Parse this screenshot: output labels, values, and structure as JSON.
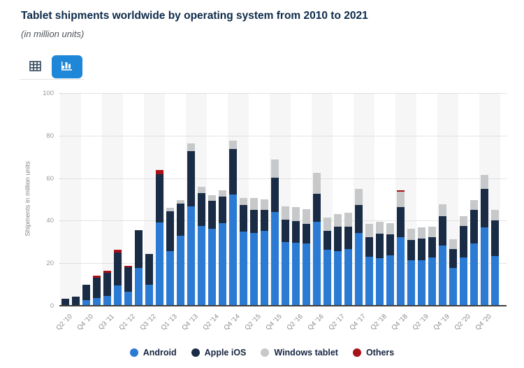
{
  "header": {
    "title": "Tablet shipments worldwide by operating system from 2010 to 2021",
    "subtitle": "(in million units)"
  },
  "toolbar": {
    "table_view_icon": "table-grid-icon",
    "chart_view_icon": "bar-chart-icon",
    "active_view": "chart",
    "active_color": "#1f87d8",
    "inactive_icon_color": "#33475c"
  },
  "chart_data": {
    "type": "bar",
    "stacked": true,
    "title": "Tablet shipments worldwide by operating system from 2010 to 2021",
    "subtitle": "(in million units)",
    "ylabel": "Shipments in million units",
    "xlabel": "",
    "ylim": [
      0,
      100
    ],
    "yticks": [
      0,
      20,
      40,
      60,
      80,
      100
    ],
    "grid": "horizontal-dotted",
    "plot_bands": "alternating vertical bands per 2 quarters",
    "legend_position": "bottom",
    "xtick_label_every": 2,
    "categories": [
      "Q2 '10",
      "Q3 '10",
      "Q4 '10",
      "Q2 '11",
      "Q3 '11",
      "Q4 '11",
      "Q1 '12",
      "Q2 '12",
      "Q3 '12",
      "Q4 '12",
      "Q1 '13",
      "Q2 '13",
      "Q4 '13",
      "Q1 '14",
      "Q2 '14",
      "Q3 '14",
      "Q4 '14",
      "Q1 '15",
      "Q2 '15",
      "Q3 '15",
      "Q4 '15",
      "Q1 '16",
      "Q2 '16",
      "Q3 '16",
      "Q4 '16",
      "Q1 '17",
      "Q2 '17",
      "Q3 '17",
      "Q4 '17",
      "Q1 '18",
      "Q2 '18",
      "Q3 '18",
      "Q4 '18",
      "Q1 '19",
      "Q2 '19",
      "Q3 '19",
      "Q4 '19",
      "Q1 '20",
      "Q2 '20",
      "Q3 '20",
      "Q4 '20",
      "Q1 '21"
    ],
    "series_meta": [
      {
        "name": "Android",
        "color": "#2b7bd4"
      },
      {
        "name": "Apple iOS",
        "color": "#1a2c45"
      },
      {
        "name": "Windows tablet",
        "color": "#c6c8ca"
      },
      {
        "name": "Others",
        "color": "#a81117"
      }
    ],
    "series": [
      {
        "name": "Android",
        "values": [
          0,
          0,
          2.6,
          3.5,
          4.5,
          9.6,
          6.6,
          17.9,
          9.9,
          39.0,
          25.6,
          33.0,
          46.8,
          37.4,
          36.2,
          38.9,
          52.3,
          34.8,
          34.1,
          35.2,
          44.0,
          30.1,
          29.7,
          29.3,
          39.6,
          26.4,
          25.7,
          26.8,
          34.3,
          23.1,
          22.4,
          23.8,
          32.1,
          21.3,
          21.3,
          22.8,
          28.3,
          17.8,
          22.8,
          29.3,
          36.7,
          23.5
        ]
      },
      {
        "name": "Apple iOS",
        "values": [
          3.3,
          4.2,
          7.3,
          9.8,
          11.0,
          15.4,
          11.5,
          17.6,
          14.5,
          22.8,
          18.9,
          15.0,
          26.0,
          15.5,
          13.3,
          12.3,
          21.4,
          12.6,
          10.9,
          9.9,
          16.1,
          10.3,
          10.0,
          9.3,
          13.1,
          8.9,
          11.4,
          10.3,
          13.2,
          9.1,
          11.5,
          9.7,
          14.3,
          9.5,
          10.2,
          9.6,
          13.7,
          9.0,
          14.6,
          15.7,
          18.2,
          16.5
        ]
      },
      {
        "name": "Windows tablet",
        "values": [
          0,
          0,
          0,
          0,
          0,
          0,
          0,
          0,
          0,
          0,
          1.6,
          1.6,
          3.4,
          3.0,
          2.5,
          3.0,
          4.0,
          3.4,
          5.8,
          4.9,
          8.6,
          6.2,
          6.6,
          6.8,
          9.9,
          6.3,
          5.9,
          6.6,
          7.4,
          6.2,
          5.5,
          5.2,
          7.3,
          5.4,
          5.2,
          4.9,
          5.7,
          4.4,
          4.8,
          4.8,
          6.6,
          5.1
        ]
      },
      {
        "name": "Others",
        "values": [
          0,
          0,
          0,
          0.9,
          1.0,
          1.3,
          0.5,
          0,
          0,
          1.9,
          0,
          0,
          0,
          0,
          0,
          0,
          0,
          0,
          0,
          0,
          0,
          0,
          0,
          0,
          0,
          0,
          0,
          0,
          0,
          0,
          0,
          0,
          0.7,
          0,
          0,
          0,
          0,
          0,
          0,
          0,
          0,
          0
        ]
      }
    ]
  },
  "legend": {
    "items": [
      "Android",
      "Apple iOS",
      "Windows tablet",
      "Others"
    ]
  }
}
